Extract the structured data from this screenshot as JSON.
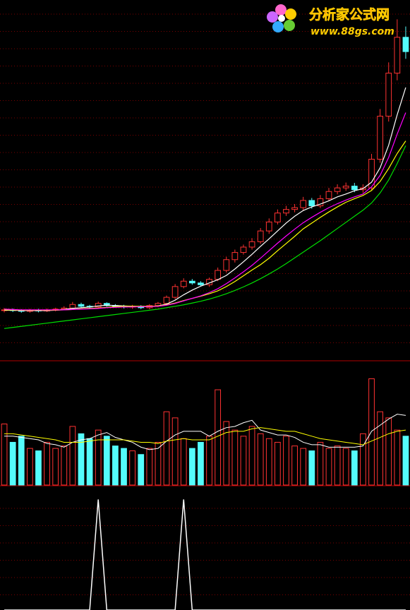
{
  "watermark": {
    "title": "分析家公式网",
    "url": "www.88gs.com"
  },
  "chart_data": [
    {
      "type": "candlestick",
      "up_color": "#ff3232",
      "down_color": "#54fcfc",
      "ylim": [
        0,
        100
      ],
      "open": [
        13.8,
        14.0,
        13.8,
        13.6,
        13.9,
        13.7,
        14.0,
        14.2,
        14.5,
        15.5,
        15.0,
        14.8,
        15.8,
        15.2,
        15.0,
        14.8,
        15.0,
        14.6,
        15.2,
        15.8,
        17.5,
        20.5,
        22.0,
        21.5,
        21.0,
        22.5,
        25.0,
        28.0,
        30.0,
        31.5,
        33.0,
        36.0,
        38.5,
        41.0,
        42.0,
        42.5,
        44.5,
        43.0,
        45.0,
        47.0,
        48.0,
        48.5,
        47.5,
        48.0,
        56.0,
        68.0,
        80.0,
        90.0
      ],
      "high": [
        14.5,
        14.4,
        14.2,
        14.3,
        14.3,
        14.4,
        14.6,
        15.0,
        16.2,
        16.0,
        15.4,
        16.3,
        16.1,
        15.6,
        15.4,
        15.4,
        15.3,
        15.6,
        16.2,
        18.0,
        21.2,
        22.8,
        22.6,
        22.0,
        23.0,
        25.8,
        28.8,
        30.8,
        32.2,
        34.0,
        36.8,
        39.5,
        42.0,
        43.0,
        43.5,
        45.5,
        45.2,
        46.0,
        48.0,
        49.0,
        49.5,
        49.4,
        49.0,
        57.5,
        70.0,
        83.0,
        95.0,
        93.0
      ],
      "low": [
        13.3,
        13.4,
        13.2,
        13.2,
        13.3,
        13.4,
        13.6,
        13.9,
        14.2,
        14.6,
        14.4,
        14.4,
        14.9,
        14.7,
        14.4,
        14.3,
        14.2,
        14.2,
        14.8,
        15.4,
        17.0,
        20.0,
        21.0,
        20.6,
        20.4,
        22.0,
        24.4,
        27.2,
        29.4,
        30.8,
        32.4,
        35.2,
        37.8,
        40.2,
        41.2,
        41.8,
        42.2,
        42.4,
        44.4,
        46.2,
        47.2,
        46.8,
        46.6,
        47.4,
        55.0,
        66.5,
        78.0,
        84.0
      ],
      "close": [
        14.0,
        13.8,
        13.6,
        13.9,
        13.7,
        14.0,
        14.2,
        14.5,
        15.5,
        15.0,
        14.8,
        15.8,
        15.2,
        15.0,
        14.8,
        15.0,
        14.6,
        15.2,
        15.8,
        17.5,
        20.5,
        22.0,
        21.5,
        21.0,
        22.5,
        25.0,
        28.0,
        30.0,
        31.5,
        33.0,
        36.0,
        38.5,
        41.0,
        42.0,
        42.5,
        44.5,
        43.0,
        45.0,
        47.0,
        48.0,
        48.5,
        47.5,
        48.0,
        56.0,
        68.0,
        80.0,
        90.0,
        86.0
      ],
      "series": [
        {
          "color": "#ffffff",
          "values": [
            13.9,
            13.9,
            13.8,
            13.8,
            13.8,
            13.8,
            13.9,
            14.1,
            14.4,
            14.6,
            14.8,
            15.1,
            15.3,
            15.2,
            15.1,
            15.0,
            14.9,
            14.9,
            15.1,
            15.6,
            16.7,
            18.2,
            19.5,
            20.6,
            21.5,
            22.4,
            23.6,
            25.4,
            27.4,
            29.5,
            31.7,
            33.8,
            36.0,
            38.2,
            40.1,
            41.7,
            42.7,
            43.5,
            44.4,
            45.5,
            46.3,
            47.2,
            47.8,
            49.6,
            53.6,
            59.9,
            68.4,
            76.0
          ]
        },
        {
          "color": "#ffff00",
          "values": [
            14.0,
            14.0,
            13.9,
            13.9,
            13.9,
            13.9,
            13.9,
            14.0,
            14.1,
            14.3,
            14.4,
            14.5,
            14.7,
            14.9,
            15.0,
            15.0,
            15.0,
            15.0,
            15.1,
            15.4,
            15.9,
            16.6,
            17.2,
            17.8,
            18.5,
            19.3,
            20.5,
            21.9,
            23.5,
            25.1,
            26.6,
            28.4,
            30.5,
            32.5,
            34.5,
            36.6,
            38.2,
            39.8,
            41.3,
            42.7,
            44.0,
            45.0,
            45.9,
            47.3,
            49.8,
            53.4,
            57.6,
            61.1
          ]
        },
        {
          "color": "#ff00ff",
          "values": [
            14.2,
            14.1,
            14.0,
            14.0,
            14.0,
            14.0,
            14.0,
            14.0,
            14.1,
            14.2,
            14.3,
            14.4,
            14.6,
            14.7,
            14.8,
            14.8,
            14.9,
            14.9,
            15.0,
            15.3,
            15.8,
            16.5,
            17.2,
            17.9,
            18.8,
            19.9,
            21.3,
            22.9,
            24.6,
            26.4,
            28.4,
            30.5,
            32.6,
            34.6,
            36.5,
            38.3,
            39.8,
            41.2,
            42.5,
            43.6,
            44.6,
            45.5,
            46.3,
            48.3,
            51.5,
            56.5,
            63.0,
            69.0
          ]
        },
        {
          "color": "#00e000",
          "values": [
            8.8,
            9.1,
            9.4,
            9.7,
            10.0,
            10.3,
            10.6,
            10.9,
            11.2,
            11.5,
            11.8,
            12.1,
            12.4,
            12.7,
            13.0,
            13.3,
            13.6,
            13.9,
            14.2,
            14.6,
            15.0,
            15.4,
            15.9,
            16.4,
            17.0,
            17.7,
            18.5,
            19.4,
            20.4,
            21.5,
            22.7,
            24.0,
            25.4,
            26.9,
            28.5,
            30.1,
            31.7,
            33.3,
            35.0,
            36.7,
            38.4,
            40.1,
            41.8,
            43.8,
            46.6,
            50.2,
            54.8,
            59.8
          ]
        }
      ]
    },
    {
      "type": "bar",
      "ylim": [
        0,
        100
      ],
      "values": [
        50,
        35,
        40,
        30,
        28,
        35,
        30,
        32,
        48,
        42,
        38,
        45,
        40,
        32,
        30,
        28,
        25,
        30,
        35,
        60,
        55,
        38,
        30,
        35,
        40,
        78,
        52,
        45,
        40,
        48,
        42,
        38,
        35,
        40,
        32,
        30,
        28,
        35,
        30,
        32,
        30,
        28,
        42,
        87,
        60,
        55,
        45,
        40
      ],
      "series": [
        {
          "color": "#ffffff",
          "values": [
            40,
            40,
            39,
            38,
            37,
            34,
            33,
            31,
            35,
            37,
            38,
            41,
            43,
            39,
            37,
            35,
            31,
            29,
            30,
            36,
            41,
            44,
            44,
            44,
            40,
            44,
            47,
            48,
            51,
            53,
            45,
            43,
            41,
            41,
            39,
            35,
            33,
            33,
            31,
            31,
            31,
            31,
            32,
            44,
            49,
            54,
            58,
            57
          ]
        },
        {
          "color": "#ffff00",
          "values": [
            42,
            42,
            41,
            40,
            39,
            38,
            37,
            35,
            35,
            35,
            36,
            37,
            37,
            37,
            37,
            36,
            35,
            35,
            34,
            36,
            37,
            38,
            37,
            37,
            37,
            40,
            43,
            44,
            44,
            46,
            47,
            46,
            45,
            44,
            44,
            42,
            40,
            38,
            37,
            36,
            35,
            34,
            33,
            36,
            39,
            42,
            44,
            45
          ]
        }
      ]
    },
    {
      "type": "line",
      "ylim": [
        0,
        100
      ],
      "color": "#ffffff",
      "values": [
        0,
        0,
        0,
        0,
        0,
        0,
        0,
        0,
        0,
        0,
        0,
        90,
        0,
        0,
        0,
        0,
        0,
        0,
        0,
        0,
        0,
        90,
        0,
        0,
        0,
        0,
        0,
        0,
        0,
        0,
        0,
        0,
        0,
        0,
        0,
        0,
        0,
        0,
        0,
        0,
        0,
        0,
        0,
        0,
        0,
        0,
        0,
        0
      ]
    }
  ]
}
